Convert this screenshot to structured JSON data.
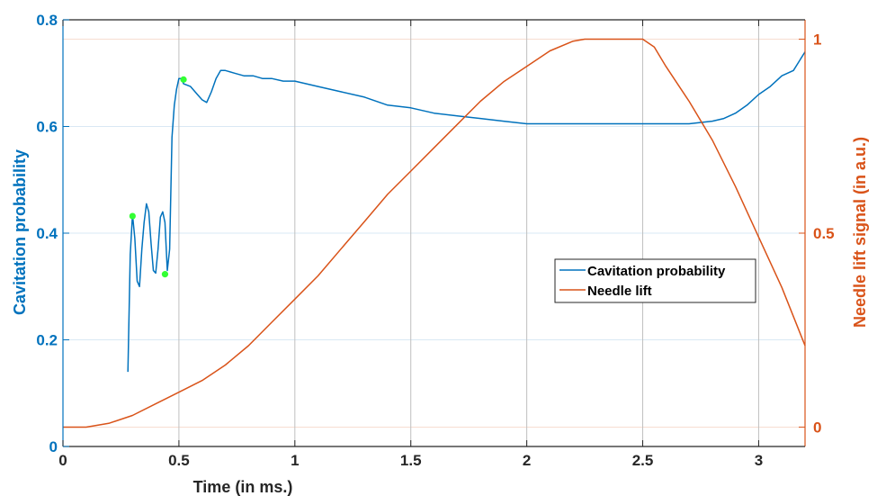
{
  "chart_data": {
    "type": "line",
    "title": "",
    "xlabel": "Time (in ms.)",
    "ylabel_left": "Cavitation probability",
    "ylabel_right": "Needle lift signal (in a.u.)",
    "xlim": [
      0,
      3.2
    ],
    "ylim_left": [
      0,
      0.8
    ],
    "ylim_right": [
      -0.05,
      1.05
    ],
    "x_ticks": [
      0,
      0.5,
      1,
      1.5,
      2,
      2.5,
      3
    ],
    "x_tick_labels": [
      "0",
      "0.5",
      "1",
      "1.5",
      "2",
      "2.5",
      "3"
    ],
    "y_left_ticks": [
      0,
      0.2,
      0.4,
      0.6,
      0.8
    ],
    "y_left_tick_labels": [
      "0",
      "0.2",
      "0.4",
      "0.6",
      "0.8"
    ],
    "y_right_ticks": [
      0,
      0.5,
      1
    ],
    "y_right_tick_labels": [
      "0",
      "0.5",
      "1"
    ],
    "grid": true,
    "legend_position": "center-right",
    "colors": {
      "cavitation": "#0072BD",
      "needle": "#D95319",
      "markers": "#33FF33",
      "grid_left": "#D9E8F4",
      "grid_right": "#F7DDD1",
      "grid_vertical": "#BFBFBF"
    },
    "series": [
      {
        "name": "Cavitation probability",
        "axis": "left",
        "x": [
          0.28,
          0.29,
          0.3,
          0.31,
          0.32,
          0.33,
          0.34,
          0.35,
          0.36,
          0.37,
          0.38,
          0.39,
          0.4,
          0.41,
          0.42,
          0.43,
          0.44,
          0.45,
          0.46,
          0.47,
          0.48,
          0.49,
          0.5,
          0.51,
          0.52,
          0.55,
          0.58,
          0.6,
          0.62,
          0.64,
          0.66,
          0.68,
          0.7,
          0.74,
          0.78,
          0.82,
          0.86,
          0.9,
          0.95,
          1.0,
          1.05,
          1.1,
          1.2,
          1.3,
          1.4,
          1.5,
          1.6,
          1.7,
          1.8,
          1.9,
          2.0,
          2.1,
          2.2,
          2.3,
          2.4,
          2.5,
          2.6,
          2.7,
          2.8,
          2.85,
          2.9,
          2.95,
          3.0,
          3.05,
          3.1,
          3.15,
          3.2
        ],
        "y": [
          0.14,
          0.36,
          0.435,
          0.39,
          0.31,
          0.3,
          0.37,
          0.42,
          0.455,
          0.44,
          0.38,
          0.33,
          0.325,
          0.37,
          0.43,
          0.44,
          0.42,
          0.33,
          0.37,
          0.58,
          0.64,
          0.67,
          0.69,
          0.69,
          0.68,
          0.675,
          0.66,
          0.65,
          0.645,
          0.665,
          0.69,
          0.705,
          0.705,
          0.7,
          0.695,
          0.695,
          0.69,
          0.69,
          0.685,
          0.685,
          0.68,
          0.675,
          0.665,
          0.655,
          0.64,
          0.635,
          0.625,
          0.62,
          0.615,
          0.61,
          0.605,
          0.605,
          0.605,
          0.605,
          0.605,
          0.605,
          0.605,
          0.605,
          0.61,
          0.615,
          0.625,
          0.64,
          0.66,
          0.675,
          0.695,
          0.705,
          0.74
        ]
      },
      {
        "name": "Needle lift",
        "axis": "right",
        "x": [
          0.0,
          0.1,
          0.2,
          0.3,
          0.4,
          0.5,
          0.6,
          0.7,
          0.8,
          0.9,
          1.0,
          1.1,
          1.2,
          1.3,
          1.4,
          1.5,
          1.6,
          1.7,
          1.8,
          1.9,
          2.0,
          2.1,
          2.2,
          2.25,
          2.3,
          2.4,
          2.5,
          2.55,
          2.6,
          2.7,
          2.8,
          2.9,
          3.0,
          3.1,
          3.2
        ],
        "y": [
          0.0,
          0.0,
          0.01,
          0.03,
          0.06,
          0.09,
          0.12,
          0.16,
          0.21,
          0.27,
          0.33,
          0.39,
          0.46,
          0.53,
          0.6,
          0.66,
          0.72,
          0.78,
          0.84,
          0.89,
          0.93,
          0.97,
          0.995,
          1.0,
          1.0,
          1.0,
          1.0,
          0.98,
          0.93,
          0.84,
          0.74,
          0.62,
          0.49,
          0.36,
          0.21
        ]
      }
    ],
    "markers": {
      "x": [
        0.3,
        0.44,
        0.52
      ],
      "y": [
        0.432,
        0.323,
        0.688
      ]
    },
    "legend": [
      "Cavitation probability",
      "Needle lift"
    ]
  }
}
